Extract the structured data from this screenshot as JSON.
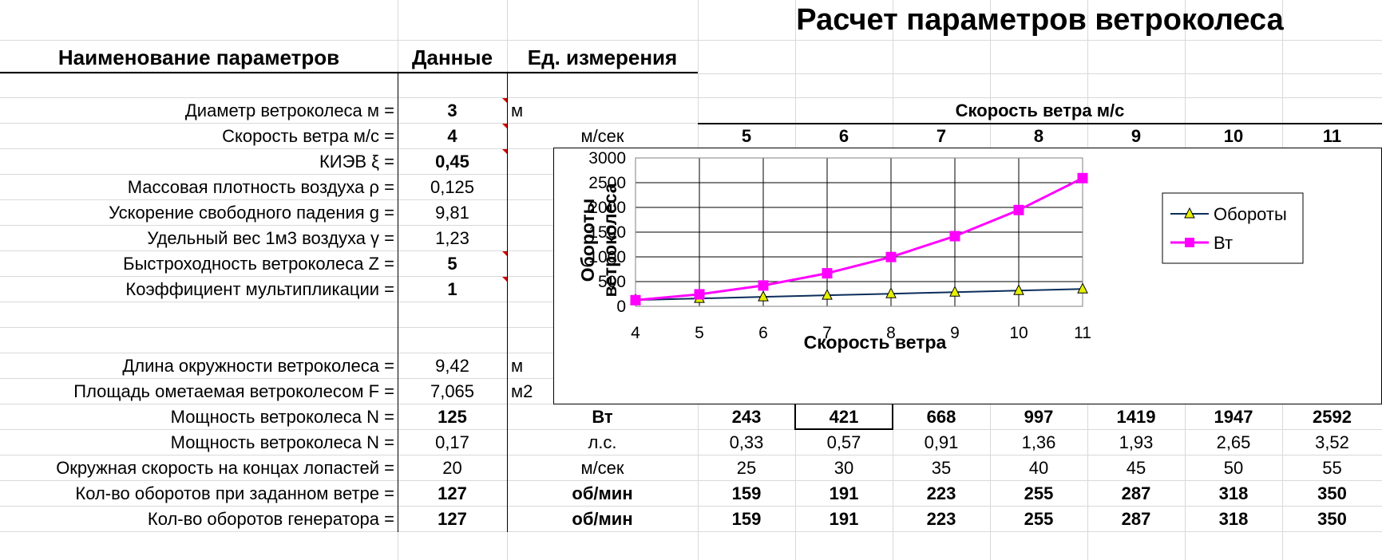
{
  "title": "Расчет параметров ветроколеса",
  "headers": {
    "name": "Наименование параметров",
    "data": "Данные",
    "unit": "Ед. измерения"
  },
  "inputs": [
    {
      "label": "Диаметр ветроколеса м =",
      "value": "3",
      "unit": "м"
    },
    {
      "label": "Скорость ветра м/с =",
      "value": "4",
      "unit": "м/сек"
    },
    {
      "label": "КИЭВ ξ =",
      "value": "0,45",
      "unit": ""
    },
    {
      "label": "Массовая плотность воздуха ρ =",
      "value": "0,125",
      "unit": ""
    },
    {
      "label": "Ускорение свободного падения g =",
      "value": "9,81",
      "unit": ""
    },
    {
      "label": "Удельный вес 1м3 воздуха γ =",
      "value": "1,23",
      "unit": ""
    },
    {
      "label": "Быстроходность ветроколеса Z =",
      "value": "5",
      "unit": ""
    },
    {
      "label": "Коэффициент мультипликации =",
      "value": "1",
      "unit": ""
    }
  ],
  "results": [
    {
      "label": "Длина окружности ветроколеса =",
      "value": "9,42",
      "unit": "м",
      "cols": []
    },
    {
      "label": "Площадь ометаемая ветроколесом F =",
      "value": "7,065",
      "unit": "м2",
      "cols": []
    },
    {
      "label": "Мощность ветроколеса N =",
      "value": "125",
      "unit": "Вт",
      "cols": [
        "243",
        "421",
        "668",
        "997",
        "1419",
        "1947",
        "2592"
      ]
    },
    {
      "label": "Мощность ветроколеса N =",
      "value": "0,17",
      "unit": "л.с.",
      "cols": [
        "0,33",
        "0,57",
        "0,91",
        "1,36",
        "1,93",
        "2,65",
        "3,52"
      ]
    },
    {
      "label": "Окружная скорость на концах лопастей =",
      "value": "20",
      "unit": "м/сек",
      "cols": [
        "25",
        "30",
        "35",
        "40",
        "45",
        "50",
        "55"
      ]
    },
    {
      "label": "Кол-во оборотов при заданном ветре =",
      "value": "127",
      "unit": "об/мин",
      "cols": [
        "159",
        "191",
        "223",
        "255",
        "287",
        "318",
        "350"
      ]
    },
    {
      "label": "Кол-во оборотов генератора =",
      "value": "127",
      "unit": "об/мин",
      "cols": [
        "159",
        "191",
        "223",
        "255",
        "287",
        "318",
        "350"
      ]
    }
  ],
  "speed_table": {
    "header": "Скорость ветра м/с",
    "speeds": [
      "5",
      "6",
      "7",
      "8",
      "9",
      "10",
      "11"
    ]
  },
  "chart_data": {
    "type": "line",
    "x": [
      4,
      5,
      6,
      7,
      8,
      9,
      10,
      11
    ],
    "x_tick_labels": [
      "4",
      "5",
      "6",
      "7",
      "8",
      "9",
      "10",
      "11"
    ],
    "y_tick_labels": [
      "0",
      "500",
      "1000",
      "1500",
      "2000",
      "2500",
      "3000"
    ],
    "series": [
      {
        "name": "Обороты",
        "values": [
          127,
          159,
          191,
          223,
          255,
          287,
          318,
          350
        ],
        "color": "#0b2d5a",
        "marker": "triangle",
        "marker_color": "#e6f000"
      },
      {
        "name": "Вт",
        "values": [
          125,
          243,
          421,
          668,
          997,
          1419,
          1947,
          2592
        ],
        "color": "#ff00ff",
        "marker": "square",
        "marker_color": "#ff00ff"
      }
    ],
    "xlabel": "Скорость ветра",
    "ylabel": [
      "Обороты",
      "ветроколеса"
    ],
    "xlim": [
      4,
      11
    ],
    "ylim": [
      0,
      3000
    ],
    "grid": true,
    "legend_position": "right"
  }
}
